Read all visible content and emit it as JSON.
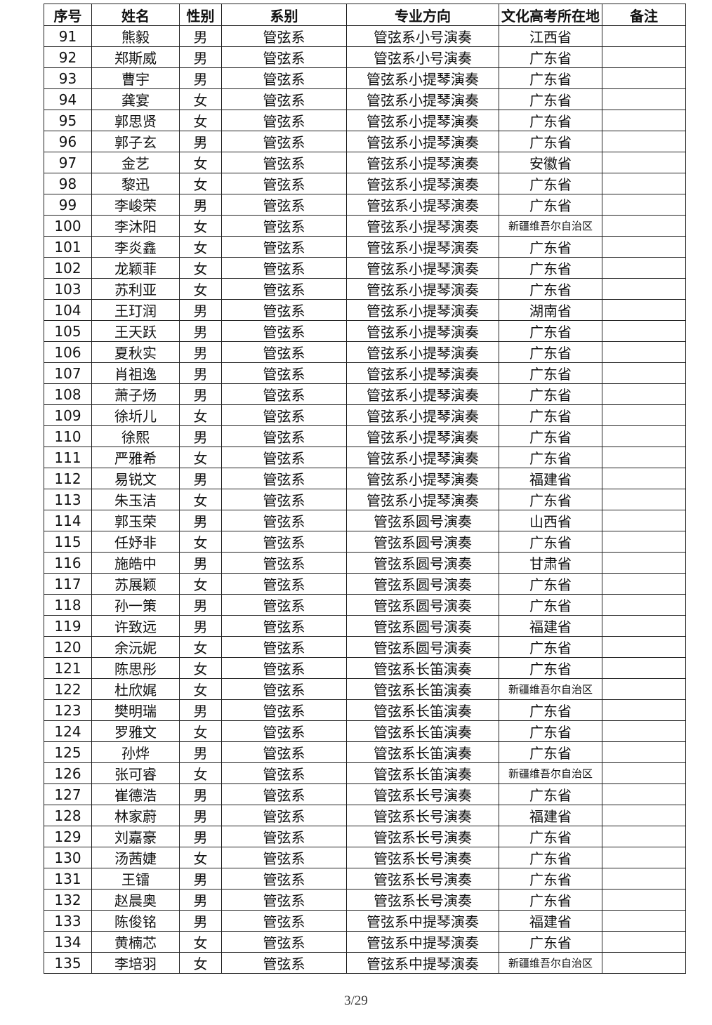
{
  "headers": [
    "序号",
    "姓名",
    "性别",
    "系别",
    "专业方向",
    "文化高考所在地",
    "备注"
  ],
  "rows": [
    [
      "91",
      "熊毅",
      "男",
      "管弦系",
      "管弦系小号演奏",
      "江西省",
      ""
    ],
    [
      "92",
      "郑斯威",
      "男",
      "管弦系",
      "管弦系小号演奏",
      "广东省",
      ""
    ],
    [
      "93",
      "曹宇",
      "男",
      "管弦系",
      "管弦系小提琴演奏",
      "广东省",
      ""
    ],
    [
      "94",
      "龚宴",
      "女",
      "管弦系",
      "管弦系小提琴演奏",
      "广东省",
      ""
    ],
    [
      "95",
      "郭思贤",
      "女",
      "管弦系",
      "管弦系小提琴演奏",
      "广东省",
      ""
    ],
    [
      "96",
      "郭子玄",
      "男",
      "管弦系",
      "管弦系小提琴演奏",
      "广东省",
      ""
    ],
    [
      "97",
      "金艺",
      "女",
      "管弦系",
      "管弦系小提琴演奏",
      "安徽省",
      ""
    ],
    [
      "98",
      "黎迅",
      "女",
      "管弦系",
      "管弦系小提琴演奏",
      "广东省",
      ""
    ],
    [
      "99",
      "李峻荣",
      "男",
      "管弦系",
      "管弦系小提琴演奏",
      "广东省",
      ""
    ],
    [
      "100",
      "李沐阳",
      "女",
      "管弦系",
      "管弦系小提琴演奏",
      "新疆维吾尔自治区",
      ""
    ],
    [
      "101",
      "李炎鑫",
      "女",
      "管弦系",
      "管弦系小提琴演奏",
      "广东省",
      ""
    ],
    [
      "102",
      "龙颖菲",
      "女",
      "管弦系",
      "管弦系小提琴演奏",
      "广东省",
      ""
    ],
    [
      "103",
      "苏利亚",
      "女",
      "管弦系",
      "管弦系小提琴演奏",
      "广东省",
      ""
    ],
    [
      "104",
      "王玎润",
      "男",
      "管弦系",
      "管弦系小提琴演奏",
      "湖南省",
      ""
    ],
    [
      "105",
      "王天跃",
      "男",
      "管弦系",
      "管弦系小提琴演奏",
      "广东省",
      ""
    ],
    [
      "106",
      "夏秋实",
      "男",
      "管弦系",
      "管弦系小提琴演奏",
      "广东省",
      ""
    ],
    [
      "107",
      "肖祖逸",
      "男",
      "管弦系",
      "管弦系小提琴演奏",
      "广东省",
      ""
    ],
    [
      "108",
      "萧子炀",
      "男",
      "管弦系",
      "管弦系小提琴演奏",
      "广东省",
      ""
    ],
    [
      "109",
      "徐圻儿",
      "女",
      "管弦系",
      "管弦系小提琴演奏",
      "广东省",
      ""
    ],
    [
      "110",
      "徐熙",
      "男",
      "管弦系",
      "管弦系小提琴演奏",
      "广东省",
      ""
    ],
    [
      "111",
      "严雅希",
      "女",
      "管弦系",
      "管弦系小提琴演奏",
      "广东省",
      ""
    ],
    [
      "112",
      "易锐文",
      "男",
      "管弦系",
      "管弦系小提琴演奏",
      "福建省",
      ""
    ],
    [
      "113",
      "朱玉洁",
      "女",
      "管弦系",
      "管弦系小提琴演奏",
      "广东省",
      ""
    ],
    [
      "114",
      "郭玉荣",
      "男",
      "管弦系",
      "管弦系圆号演奏",
      "山西省",
      ""
    ],
    [
      "115",
      "任妤非",
      "女",
      "管弦系",
      "管弦系圆号演奏",
      "广东省",
      ""
    ],
    [
      "116",
      "施皓中",
      "男",
      "管弦系",
      "管弦系圆号演奏",
      "甘肃省",
      ""
    ],
    [
      "117",
      "苏展颖",
      "女",
      "管弦系",
      "管弦系圆号演奏",
      "广东省",
      ""
    ],
    [
      "118",
      "孙一策",
      "男",
      "管弦系",
      "管弦系圆号演奏",
      "广东省",
      ""
    ],
    [
      "119",
      "许致远",
      "男",
      "管弦系",
      "管弦系圆号演奏",
      "福建省",
      ""
    ],
    [
      "120",
      "余沅妮",
      "女",
      "管弦系",
      "管弦系圆号演奏",
      "广东省",
      ""
    ],
    [
      "121",
      "陈思彤",
      "女",
      "管弦系",
      "管弦系长笛演奏",
      "广东省",
      ""
    ],
    [
      "122",
      "杜欣娓",
      "女",
      "管弦系",
      "管弦系长笛演奏",
      "新疆维吾尔自治区",
      ""
    ],
    [
      "123",
      "樊明瑞",
      "男",
      "管弦系",
      "管弦系长笛演奏",
      "广东省",
      ""
    ],
    [
      "124",
      "罗雅文",
      "女",
      "管弦系",
      "管弦系长笛演奏",
      "广东省",
      ""
    ],
    [
      "125",
      "孙烨",
      "男",
      "管弦系",
      "管弦系长笛演奏",
      "广东省",
      ""
    ],
    [
      "126",
      "张可睿",
      "女",
      "管弦系",
      "管弦系长笛演奏",
      "新疆维吾尔自治区",
      ""
    ],
    [
      "127",
      "崔德浩",
      "男",
      "管弦系",
      "管弦系长号演奏",
      "广东省",
      ""
    ],
    [
      "128",
      "林家蔚",
      "男",
      "管弦系",
      "管弦系长号演奏",
      "福建省",
      ""
    ],
    [
      "129",
      "刘嘉豪",
      "男",
      "管弦系",
      "管弦系长号演奏",
      "广东省",
      ""
    ],
    [
      "130",
      "汤茜婕",
      "女",
      "管弦系",
      "管弦系长号演奏",
      "广东省",
      ""
    ],
    [
      "131",
      "王镭",
      "男",
      "管弦系",
      "管弦系长号演奏",
      "广东省",
      ""
    ],
    [
      "132",
      "赵晨奥",
      "男",
      "管弦系",
      "管弦系长号演奏",
      "广东省",
      ""
    ],
    [
      "133",
      "陈俊铭",
      "男",
      "管弦系",
      "管弦系中提琴演奏",
      "福建省",
      ""
    ],
    [
      "134",
      "黄楠芯",
      "女",
      "管弦系",
      "管弦系中提琴演奏",
      "广东省",
      ""
    ],
    [
      "135",
      "李培羽",
      "女",
      "管弦系",
      "管弦系中提琴演奏",
      "新疆维吾尔自治区",
      ""
    ]
  ],
  "page_number": "3/29"
}
